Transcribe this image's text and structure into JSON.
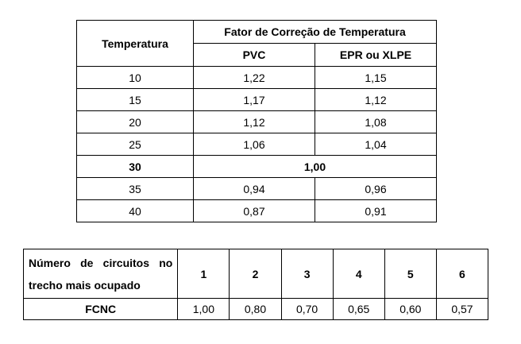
{
  "temperature_table": {
    "header_temperature": "Temperatura",
    "header_factor": "Fator de Correção de Temperatura",
    "header_pvc": "PVC",
    "header_epr": "EPR ou XLPE",
    "rows": [
      {
        "temp": "10",
        "pvc": "1,22",
        "epr": "1,15"
      },
      {
        "temp": "15",
        "pvc": "1,17",
        "epr": "1,12"
      },
      {
        "temp": "20",
        "pvc": "1,12",
        "epr": "1,08"
      },
      {
        "temp": "25",
        "pvc": "1,06",
        "epr": "1,04"
      }
    ],
    "reference_row": {
      "temp": "30",
      "value": "1,00"
    },
    "rows_after": [
      {
        "temp": "35",
        "pvc": "0,94",
        "epr": "0,96"
      },
      {
        "temp": "40",
        "pvc": "0,87",
        "epr": "0,91"
      }
    ]
  },
  "circuits_table": {
    "header_label": "Número de circuitos no trecho mais ocupado",
    "columns": [
      "1",
      "2",
      "3",
      "4",
      "5",
      "6"
    ],
    "row_label": "FCNC",
    "values": [
      "1,00",
      "0,80",
      "0,70",
      "0,65",
      "0,60",
      "0,57"
    ]
  }
}
